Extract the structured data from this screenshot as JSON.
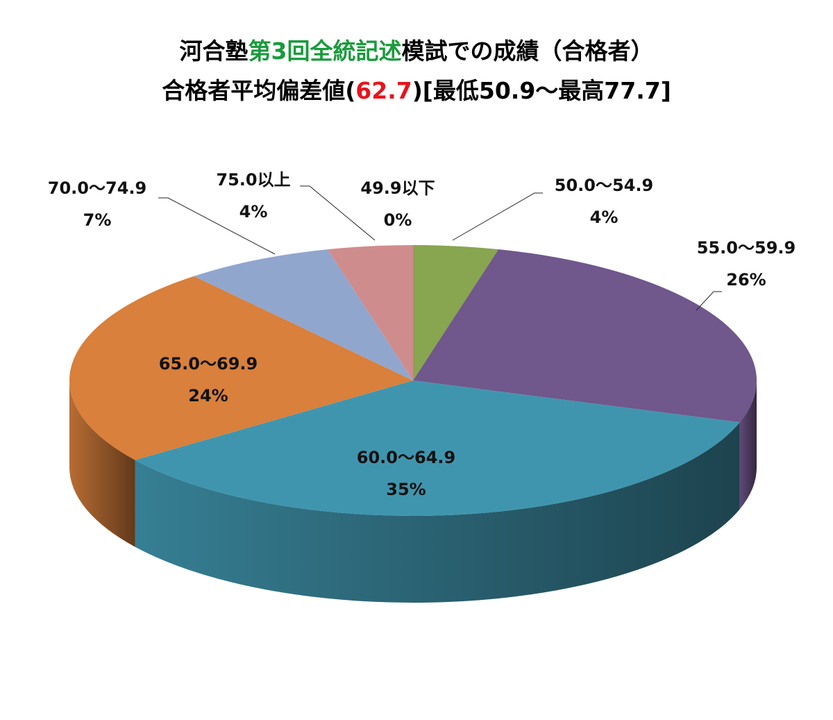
{
  "chart_data": {
    "type": "pie3d",
    "title": [
      [
        {
          "text": "河合塾",
          "color": "#000000"
        },
        {
          "text": "第3回全統記述",
          "color": "#1a9a3c"
        },
        {
          "text": "模試での成績（合格者）",
          "color": "#000000"
        }
      ],
      [
        {
          "text": "合格者平均偏差値(",
          "color": "#000000"
        },
        {
          "text": "62.7",
          "color": "#e8141c"
        },
        {
          "text": ")[最低50.9～最高77.7]",
          "color": "#000000"
        }
      ]
    ],
    "categories": [
      "49.9以下",
      "50.0～54.9",
      "55.0～59.9",
      "60.0～64.9",
      "65.0～69.9",
      "70.0～74.9",
      "75.0以上"
    ],
    "values": [
      0,
      4,
      26,
      35,
      24,
      7,
      4
    ],
    "value_labels": [
      "0%",
      "4%",
      "26%",
      "35%",
      "24%",
      "7%",
      "4%"
    ],
    "colors": [
      "#4f81bd",
      "#88a550",
      "#70578c",
      "#4095ae",
      "#d8803c",
      "#91a6cd",
      "#cf8c8d"
    ]
  }
}
